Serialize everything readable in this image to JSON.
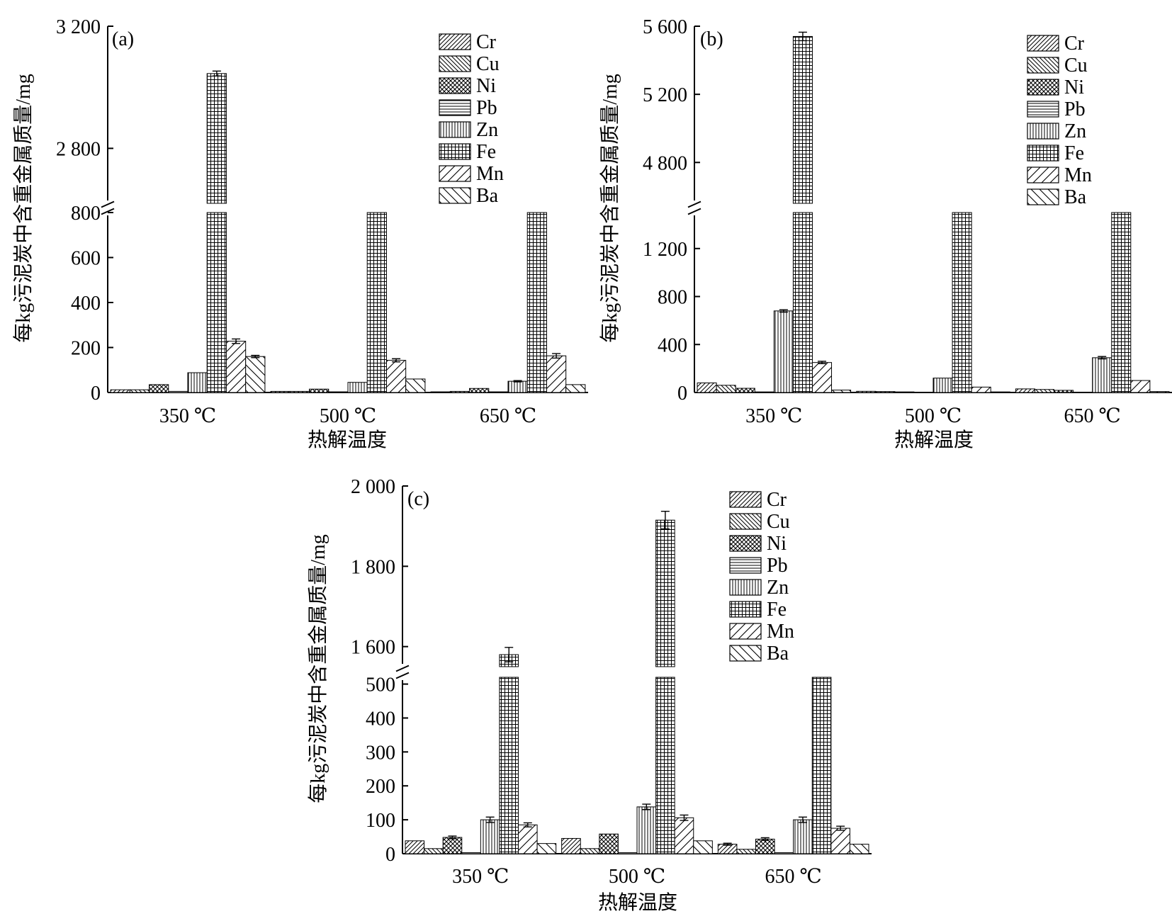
{
  "figure": {
    "series_keys": [
      "Cr",
      "Cu",
      "Ni",
      "Pb",
      "Zn",
      "Fe",
      "Mn",
      "Ba"
    ],
    "patterns": {
      "Cr": "diag-dense-up",
      "Cu": "diag-dense-down",
      "Ni": "crosshatch",
      "Pb": "horizontal",
      "Zn": "vertical",
      "Fe": "grid",
      "Mn": "diag-sparse-up",
      "Ba": "diag-sparse-down"
    }
  },
  "chart_data": [
    {
      "type": "bar",
      "panel_label": "(a)",
      "title": "",
      "xlabel": "热解温度",
      "ylabel": "每kg污泥炭中含重金属质量/mg",
      "categories": [
        "350 ℃",
        "500 ℃",
        "650 ℃"
      ],
      "broken_axis": true,
      "ylim_lower": [
        0,
        800
      ],
      "ylim_upper": [
        2620,
        3200
      ],
      "yticks_lower": [
        {
          "v": 0,
          "label": "0"
        },
        {
          "v": 200,
          "label": "200"
        },
        {
          "v": 400,
          "label": "400"
        },
        {
          "v": 600,
          "label": "600"
        },
        {
          "v": 800,
          "label": "800"
        }
      ],
      "yticks_upper": [
        {
          "v": 2800,
          "label": "2 800"
        },
        {
          "v": 3200,
          "label": "3 200"
        }
      ],
      "legend": {
        "position": "top-right",
        "entries": [
          "Cr",
          "Cu",
          "Ni",
          "Pb",
          "Zn",
          "Fe",
          "Mn",
          "Ba"
        ]
      },
      "series": [
        {
          "name": "Cr",
          "values": [
            12,
            5,
            3
          ],
          "errors": [
            0,
            0,
            0
          ]
        },
        {
          "name": "Cu",
          "values": [
            12,
            5,
            5
          ],
          "errors": [
            0,
            0,
            0
          ]
        },
        {
          "name": "Ni",
          "values": [
            35,
            15,
            18
          ],
          "errors": [
            0,
            0,
            0
          ]
        },
        {
          "name": "Pb",
          "values": [
            5,
            3,
            3
          ],
          "errors": [
            0,
            0,
            0
          ]
        },
        {
          "name": "Zn",
          "values": [
            88,
            45,
            50
          ],
          "errors": [
            0,
            0,
            3
          ]
        },
        {
          "name": "Fe",
          "values": [
            3045,
            1500,
            1500
          ],
          "errors": [
            8,
            0,
            0
          ]
        },
        {
          "name": "Mn",
          "values": [
            228,
            143,
            163
          ],
          "errors": [
            10,
            7,
            10
          ]
        },
        {
          "name": "Ba",
          "values": [
            160,
            60,
            35
          ],
          "errors": [
            5,
            0,
            0
          ]
        }
      ]
    },
    {
      "type": "bar",
      "panel_label": "(b)",
      "title": "",
      "xlabel": "热解温度",
      "ylabel": "每kg污泥炭中含重金属质量/mg",
      "categories": [
        "350 ℃",
        "500 ℃",
        "650 ℃"
      ],
      "broken_axis": true,
      "ylim_lower": [
        0,
        1500
      ],
      "ylim_upper": [
        4560,
        5600
      ],
      "yticks_lower": [
        {
          "v": 0,
          "label": "0"
        },
        {
          "v": 400,
          "label": "400"
        },
        {
          "v": 800,
          "label": "800"
        },
        {
          "v": 1200,
          "label": "1 200"
        }
      ],
      "yticks_upper": [
        {
          "v": 4800,
          "label": "4 800"
        },
        {
          "v": 5200,
          "label": "5 200"
        },
        {
          "v": 5600,
          "label": "5 600"
        }
      ],
      "legend": {
        "position": "top-right",
        "entries": [
          "Cr",
          "Cu",
          "Ni",
          "Pb",
          "Zn",
          "Fe",
          "Mn",
          "Ba"
        ]
      },
      "series": [
        {
          "name": "Cr",
          "values": [
            80,
            10,
            30
          ],
          "errors": [
            0,
            0,
            0
          ]
        },
        {
          "name": "Cu",
          "values": [
            60,
            8,
            25
          ],
          "errors": [
            0,
            0,
            0
          ]
        },
        {
          "name": "Ni",
          "values": [
            35,
            5,
            18
          ],
          "errors": [
            0,
            0,
            0
          ]
        },
        {
          "name": "Pb",
          "values": [
            5,
            2,
            3
          ],
          "errors": [
            0,
            0,
            0
          ]
        },
        {
          "name": "Zn",
          "values": [
            680,
            120,
            290
          ],
          "errors": [
            10,
            0,
            10
          ]
        },
        {
          "name": "Fe",
          "values": [
            5540,
            3000,
            3000
          ],
          "errors": [
            25,
            0,
            0
          ]
        },
        {
          "name": "Mn",
          "values": [
            250,
            45,
            100
          ],
          "errors": [
            10,
            0,
            0
          ]
        },
        {
          "name": "Ba",
          "values": [
            20,
            5,
            8
          ],
          "errors": [
            0,
            0,
            0
          ]
        }
      ]
    },
    {
      "type": "bar",
      "panel_label": "(c)",
      "title": "",
      "xlabel": "热解温度",
      "ylabel": "每kg污泥炭中含重金属质量/mg",
      "categories": [
        "350 ℃",
        "500 ℃",
        "650 ℃"
      ],
      "broken_axis": true,
      "ylim_lower": [
        0,
        520
      ],
      "ylim_upper": [
        1550,
        2000
      ],
      "yticks_lower": [
        {
          "v": 0,
          "label": "0"
        },
        {
          "v": 100,
          "label": "100"
        },
        {
          "v": 200,
          "label": "200"
        },
        {
          "v": 300,
          "label": "300"
        },
        {
          "v": 400,
          "label": "400"
        },
        {
          "v": 500,
          "label": "500"
        }
      ],
      "yticks_upper": [
        {
          "v": 1600,
          "label": "1 600"
        },
        {
          "v": 1800,
          "label": "1 800"
        },
        {
          "v": 2000,
          "label": "2 000"
        }
      ],
      "legend": {
        "position": "top-right",
        "entries": [
          "Cr",
          "Cu",
          "Ni",
          "Pb",
          "Zn",
          "Fe",
          "Mn",
          "Ba"
        ]
      },
      "series": [
        {
          "name": "Cr",
          "values": [
            38,
            45,
            28
          ],
          "errors": [
            0,
            0,
            3
          ]
        },
        {
          "name": "Cu",
          "values": [
            15,
            15,
            13
          ],
          "errors": [
            0,
            0,
            0
          ]
        },
        {
          "name": "Ni",
          "values": [
            48,
            58,
            43
          ],
          "errors": [
            4,
            0,
            4
          ]
        },
        {
          "name": "Pb",
          "values": [
            3,
            3,
            3
          ],
          "errors": [
            0,
            0,
            0
          ]
        },
        {
          "name": "Zn",
          "values": [
            100,
            138,
            100
          ],
          "errors": [
            8,
            8,
            8
          ]
        },
        {
          "name": "Fe",
          "values": [
            1580,
            1915,
            1000
          ],
          "errors": [
            18,
            22,
            0
          ]
        },
        {
          "name": "Mn",
          "values": [
            85,
            106,
            75
          ],
          "errors": [
            6,
            8,
            6
          ]
        },
        {
          "name": "Ba",
          "values": [
            30,
            38,
            28
          ],
          "errors": [
            0,
            0,
            0
          ]
        }
      ]
    }
  ]
}
